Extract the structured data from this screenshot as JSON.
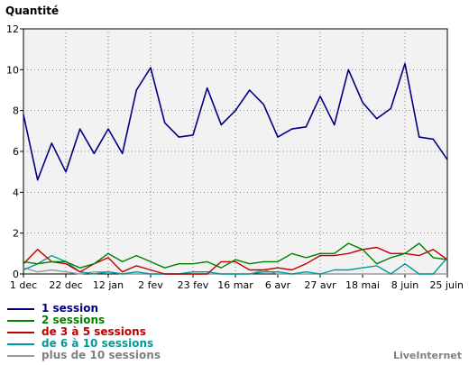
{
  "chart_data": {
    "type": "line",
    "ylabel": "Quantité",
    "ylim": [
      0,
      12
    ],
    "yticks": [
      0,
      2,
      4,
      6,
      8,
      10,
      12
    ],
    "x_tick_labels": [
      "1 dec",
      "22 dec",
      "12 jan",
      "2 fev",
      "23 fev",
      "16 mar",
      "6 avr",
      "27 avr",
      "18 mai",
      "8 juin",
      "25 juin"
    ],
    "x_tick_index": [
      0,
      3,
      6,
      9,
      12,
      15,
      18,
      21,
      24,
      27,
      30
    ],
    "n_points": 31,
    "grid": true,
    "legend_position": "bottom-left",
    "series": [
      {
        "name": "1 session",
        "color": "#000080",
        "values": [
          7.8,
          4.6,
          6.4,
          5.0,
          7.1,
          5.9,
          7.1,
          5.9,
          9.0,
          10.1,
          7.4,
          6.7,
          6.8,
          9.1,
          7.3,
          8.0,
          9.0,
          8.3,
          6.7,
          7.1,
          7.2,
          8.7,
          7.3,
          10.0,
          8.4,
          7.6,
          8.1,
          10.3,
          6.7,
          6.6,
          5.6
        ]
      },
      {
        "name": "2 sessions",
        "color": "#008000",
        "values": [
          0.6,
          0.5,
          0.6,
          0.6,
          0.3,
          0.5,
          1.0,
          0.6,
          0.9,
          0.6,
          0.3,
          0.5,
          0.5,
          0.6,
          0.3,
          0.7,
          0.5,
          0.6,
          0.6,
          1.0,
          0.8,
          1.0,
          1.0,
          1.5,
          1.2,
          0.5,
          0.8,
          1.0,
          1.5,
          0.8,
          0.7
        ]
      },
      {
        "name": "de 3 à 5 sessions",
        "color": "#c00000",
        "values": [
          0.5,
          1.2,
          0.6,
          0.5,
          0.1,
          0.5,
          0.8,
          0.1,
          0.4,
          0.2,
          0.0,
          0.0,
          0.0,
          0.0,
          0.6,
          0.6,
          0.2,
          0.2,
          0.3,
          0.2,
          0.5,
          0.9,
          0.9,
          1.0,
          1.2,
          1.3,
          1.0,
          1.0,
          0.9,
          1.2,
          0.7
        ]
      },
      {
        "name": "de 6 à 10 sessions",
        "color": "#009a9a",
        "values": [
          0.2,
          0.5,
          0.9,
          0.6,
          0.1,
          0.0,
          0.1,
          0.0,
          0.1,
          0.0,
          0.0,
          0.0,
          0.1,
          0.1,
          0.0,
          0.0,
          0.0,
          0.1,
          0.1,
          0.0,
          0.1,
          0.0,
          0.2,
          0.2,
          0.3,
          0.4,
          0.0,
          0.5,
          0.0,
          0.0,
          0.8
        ]
      },
      {
        "name": "plus de 10 sessions",
        "color": "#9a9a9a",
        "values": [
          0.3,
          0.1,
          0.2,
          0.1,
          0.0,
          0.1,
          0.1,
          0.0,
          0.0,
          0.0,
          0.0,
          0.0,
          0.0,
          0.0,
          0.0,
          0.0,
          0.0,
          0.2,
          0.0,
          0.0,
          0.0,
          0.0,
          0.0,
          0.0,
          0.0,
          0.0,
          0.0,
          0.0,
          0.0,
          0.0,
          0.0
        ]
      }
    ]
  },
  "credit": "LiveInternet"
}
